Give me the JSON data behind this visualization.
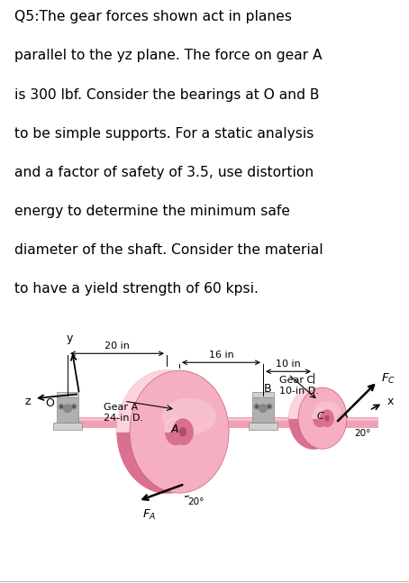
{
  "title_lines": [
    "Q5:The gear forces shown act in planes",
    "parallel to the yz plane. The force on gear A",
    "is 300 lbf. Consider the bearings at O and B",
    "to be simple supports. For a static analysis",
    "and a factor of safety of 3.5, use distortion",
    "energy to determine the minimum safe",
    "diameter of the shaft. Consider the material",
    "to have a yield strength of 60 kpsi."
  ],
  "fig_width": 4.54,
  "fig_height": 6.47,
  "dpi": 100,
  "bg_color": "#ffffff",
  "text_color": "#000000",
  "pink_gear": "#f5afc0",
  "pink_dark": "#d97090",
  "pink_light": "#fbd4de",
  "pink_edge": "#c86080",
  "gray_bearing": "#b0b0b0",
  "gray_dark": "#888888",
  "gray_light": "#d0d0d0",
  "shaft_pink": "#f0a0b5"
}
